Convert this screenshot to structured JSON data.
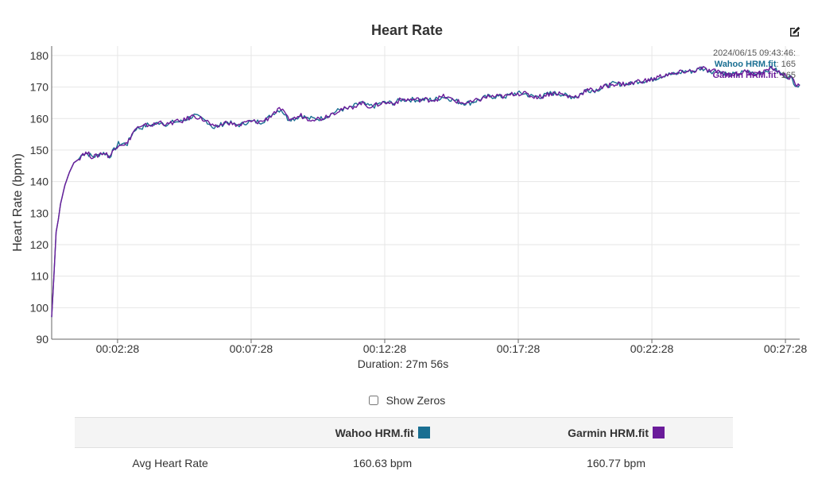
{
  "chart_data": {
    "type": "line",
    "title": "Heart Rate",
    "xlabel": "Duration: 27m 56s",
    "ylabel": "Heart Rate (bpm)",
    "ylim": [
      90,
      183
    ],
    "xlim_seconds": [
      0,
      1680
    ],
    "y_ticks": [
      90,
      100,
      110,
      120,
      130,
      140,
      150,
      160,
      170,
      180
    ],
    "x_ticks": [
      {
        "seconds": 148,
        "label": "00:02:28"
      },
      {
        "seconds": 448,
        "label": "00:07:28"
      },
      {
        "seconds": 748,
        "label": "00:12:28"
      },
      {
        "seconds": 1048,
        "label": "00:17:28"
      },
      {
        "seconds": 1348,
        "label": "00:22:28"
      },
      {
        "seconds": 1648,
        "label": "00:27:28"
      }
    ],
    "grid": true,
    "series": [
      {
        "name": "Wahoo HRM.fit",
        "color": "#1a6f92",
        "x_seconds": [
          0,
          5,
          10,
          15,
          20,
          30,
          40,
          50,
          60,
          70,
          80,
          90,
          100,
          110,
          120,
          130,
          140,
          150,
          160,
          170,
          180,
          190,
          200,
          215,
          230,
          245,
          260,
          275,
          290,
          305,
          320,
          335,
          350,
          365,
          380,
          395,
          410,
          425,
          440,
          455,
          470,
          485,
          500,
          515,
          530,
          545,
          560,
          575,
          590,
          605,
          620,
          635,
          650,
          665,
          680,
          695,
          710,
          725,
          740,
          755,
          770,
          785,
          800,
          820,
          840,
          860,
          880,
          900,
          920,
          940,
          960,
          980,
          1000,
          1020,
          1040,
          1060,
          1080,
          1100,
          1120,
          1140,
          1160,
          1180,
          1200,
          1220,
          1240,
          1260,
          1280,
          1300,
          1320,
          1340,
          1360,
          1380,
          1400,
          1420,
          1440,
          1460,
          1480,
          1500,
          1520,
          1540,
          1560,
          1580,
          1600,
          1620,
          1640,
          1660,
          1670,
          1680
        ],
        "values": [
          97,
          110,
          124,
          128,
          133,
          139,
          143,
          146,
          147,
          149,
          149,
          148,
          148,
          149,
          149,
          148,
          150,
          152,
          152,
          152,
          155,
          157,
          157,
          158,
          158,
          159,
          158,
          159,
          159,
          160,
          161,
          160,
          159,
          157,
          158,
          159,
          158,
          158,
          159,
          159,
          159,
          160,
          162,
          163,
          160,
          160,
          161,
          160,
          160,
          160,
          161,
          162,
          163,
          163,
          164,
          165,
          164,
          164,
          165,
          165,
          165,
          166,
          166,
          166,
          166,
          166,
          167,
          166,
          165,
          165,
          166,
          167,
          167,
          167,
          168,
          168,
          167,
          167,
          168,
          168,
          167,
          167,
          169,
          169,
          170,
          171,
          171,
          171,
          172,
          172,
          173,
          174,
          174,
          175,
          175,
          176,
          175,
          175,
          174,
          174,
          175,
          174,
          175,
          176,
          174,
          173,
          171,
          170
        ],
        "sampled_every_seconds": 5
      },
      {
        "name": "Garmin HRM.fit",
        "color": "#6a1b9a",
        "x_seconds": [
          0,
          5,
          10,
          15,
          20,
          30,
          40,
          50,
          60,
          70,
          80,
          90,
          100,
          110,
          120,
          130,
          140,
          150,
          160,
          170,
          180,
          190,
          200,
          215,
          230,
          245,
          260,
          275,
          290,
          305,
          320,
          335,
          350,
          365,
          380,
          395,
          410,
          425,
          440,
          455,
          470,
          485,
          500,
          515,
          530,
          545,
          560,
          575,
          590,
          605,
          620,
          635,
          650,
          665,
          680,
          695,
          710,
          725,
          740,
          755,
          770,
          785,
          800,
          820,
          840,
          860,
          880,
          900,
          920,
          940,
          960,
          980,
          1000,
          1020,
          1040,
          1060,
          1080,
          1100,
          1120,
          1140,
          1160,
          1180,
          1200,
          1220,
          1240,
          1260,
          1280,
          1300,
          1320,
          1340,
          1360,
          1380,
          1400,
          1420,
          1440,
          1460,
          1480,
          1500,
          1520,
          1540,
          1560,
          1580,
          1600,
          1620,
          1640,
          1660,
          1670,
          1680
        ],
        "values": [
          97,
          110,
          124,
          128,
          133,
          139,
          143,
          146,
          147,
          149,
          149,
          148,
          148,
          149,
          149,
          148,
          150,
          152,
          152,
          152,
          155,
          157,
          157,
          158,
          158,
          159,
          158,
          159,
          159,
          160,
          161,
          160,
          159,
          157,
          158,
          159,
          158,
          158,
          159,
          159,
          159,
          160,
          162,
          163,
          160,
          160,
          161,
          160,
          160,
          160,
          161,
          162,
          163,
          163,
          164,
          165,
          164,
          164,
          165,
          165,
          165,
          166,
          166,
          166,
          166,
          166,
          167,
          166,
          165,
          165,
          166,
          167,
          167,
          167,
          168,
          168,
          167,
          167,
          168,
          168,
          167,
          167,
          169,
          169,
          170,
          171,
          171,
          171,
          172,
          172,
          173,
          174,
          174,
          175,
          175,
          176,
          175,
          175,
          174,
          174,
          175,
          174,
          175,
          176,
          174,
          173,
          171,
          170
        ],
        "sampled_every_seconds": 5
      }
    ],
    "legend": "none"
  },
  "tooltip": {
    "timestamp": "2024/06/15 09:43:46:",
    "rows": [
      {
        "name": "Wahoo HRM.fit",
        "value": "165"
      },
      {
        "name": "Garmin HRM.fit",
        "value": "165"
      }
    ]
  },
  "controls": {
    "show_zeros_label": "Show Zeros",
    "show_zeros_checked": false,
    "edit_icon": "edit-icon"
  },
  "stats_table": {
    "headers": [
      "",
      "Wahoo HRM.fit",
      "Garmin HRM.fit"
    ],
    "header_colors": [
      "",
      "#1a6f92",
      "#6a1b9a"
    ],
    "rows": [
      {
        "label": "Avg Heart Rate",
        "values": [
          "160.63 bpm",
          "160.77 bpm"
        ]
      }
    ]
  }
}
